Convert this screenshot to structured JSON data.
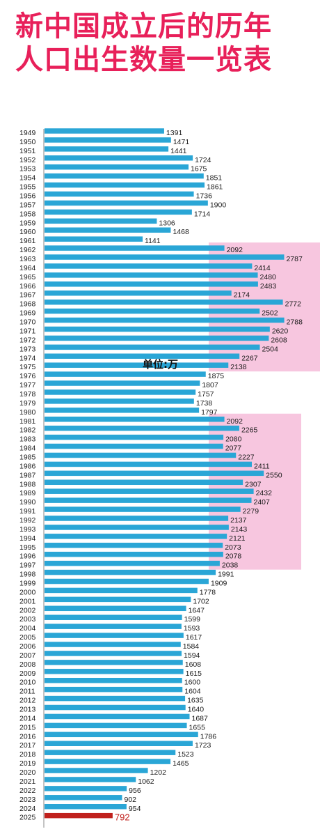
{
  "title_lines": [
    "新中国成立后的历年",
    "人口出生数量一览表"
  ],
  "unit_label": "单位:万",
  "chart_data": {
    "type": "bar",
    "orientation": "horizontal",
    "categories": [
      "1949",
      "1950",
      "1951",
      "1952",
      "1953",
      "1954",
      "1955",
      "1956",
      "1957",
      "1958",
      "1959",
      "1960",
      "1961",
      "1962",
      "1963",
      "1964",
      "1965",
      "1966",
      "1967",
      "1968",
      "1969",
      "1970",
      "1971",
      "1972",
      "1973",
      "1974",
      "1975",
      "1976",
      "1977",
      "1978",
      "1979",
      "1980",
      "1981",
      "1982",
      "1983",
      "1984",
      "1985",
      "1986",
      "1987",
      "1988",
      "1989",
      "1990",
      "1991",
      "1992",
      "1993",
      "1994",
      "1995",
      "1996",
      "1997",
      "1998",
      "1999",
      "2000",
      "2001",
      "2002",
      "2003",
      "2004",
      "2005",
      "2006",
      "2007",
      "2008",
      "2009",
      "2010",
      "2011",
      "2012",
      "2013",
      "2014",
      "2015",
      "2016",
      "2017",
      "2018",
      "2019",
      "2020",
      "2021",
      "2022",
      "2023",
      "2024",
      "2025"
    ],
    "values": [
      1391,
      1471,
      1441,
      1724,
      1675,
      1851,
      1861,
      1736,
      1900,
      1714,
      1306,
      1468,
      1141,
      2092,
      2787,
      2414,
      2480,
      2483,
      2174,
      2772,
      2502,
      2788,
      2620,
      2608,
      2504,
      2267,
      2138,
      1875,
      1807,
      1757,
      1738,
      1797,
      2092,
      2265,
      2080,
      2077,
      2227,
      2411,
      2550,
      2307,
      2432,
      2407,
      2279,
      2137,
      2143,
      2121,
      2073,
      2078,
      2038,
      1991,
      1909,
      1778,
      1702,
      1647,
      1599,
      1593,
      1617,
      1584,
      1594,
      1608,
      1615,
      1600,
      1604,
      1635,
      1640,
      1687,
      1655,
      1786,
      1723,
      1523,
      1465,
      1202,
      1062,
      956,
      902,
      954,
      792
    ],
    "highlight_ranges": [
      [
        "1962",
        "1975"
      ],
      [
        "1981",
        "1997"
      ]
    ],
    "colors": {
      "bar": "#2aa6d6",
      "bar_last": "#c0201c",
      "highlight": "#f7c6df",
      "title": "#e8205a"
    }
  }
}
